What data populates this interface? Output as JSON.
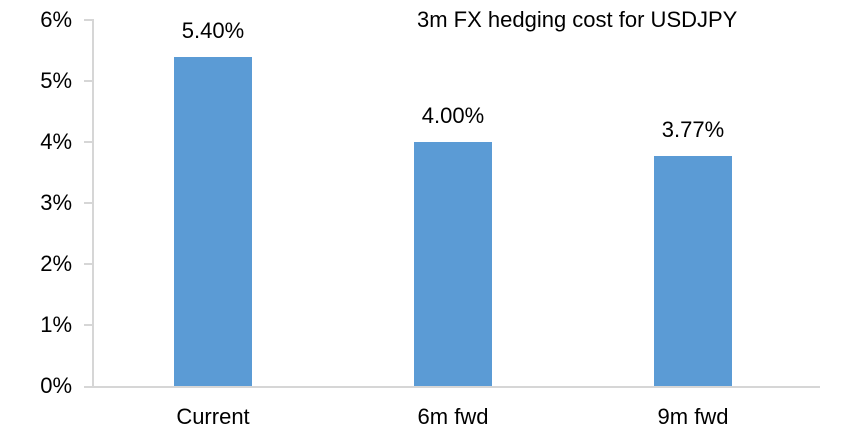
{
  "chart_data": {
    "type": "bar",
    "title": "3m FX hedging cost for USDJPY",
    "categories": [
      "Current",
      "6m fwd",
      "9m fwd"
    ],
    "values": [
      5.4,
      4.0,
      3.77
    ],
    "value_labels": [
      "5.40%",
      "4.00%",
      "3.77%"
    ],
    "y_ticks": [
      "0%",
      "1%",
      "2%",
      "3%",
      "4%",
      "5%",
      "6%"
    ],
    "ylim": [
      0,
      6
    ],
    "xlabel": "",
    "ylabel": "",
    "grid": false,
    "legend_position": "none",
    "bar_color": "#5B9BD5",
    "axis_color": "#D6D6D6",
    "text_color": "#000000",
    "background_color": "#FFFFFF"
  }
}
